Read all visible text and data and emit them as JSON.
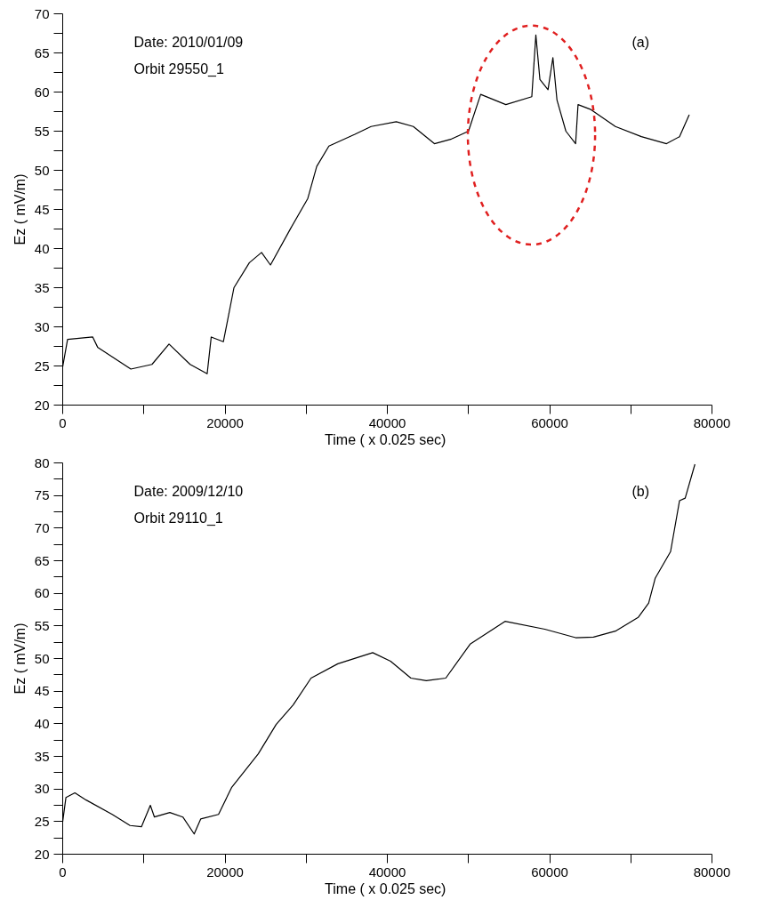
{
  "chart_data": [
    {
      "type": "line",
      "xlabel": "Time  ( x 0.025 sec)",
      "ylabel": "Ez ( mV/m)",
      "annotations": [
        "Date:  2010/01/09",
        "Orbit 29550_1",
        "(a)"
      ],
      "grid": false,
      "x": [
        0,
        600,
        3700,
        4300,
        8400,
        11000,
        13100,
        15700,
        17800,
        18300,
        19800,
        21100,
        23000,
        24500,
        25600,
        28100,
        30200,
        31300,
        32800,
        36000,
        38000,
        41100,
        43200,
        45800,
        47900,
        50000,
        51500,
        54600,
        57800,
        58300,
        58800,
        59800,
        60400,
        60900,
        62000,
        63200,
        63500,
        65000,
        68100,
        71300,
        74400,
        76000,
        77200
      ],
      "series": [
        {
          "color": "#000000",
          "values": [
            24.9,
            28.4,
            28.7,
            27.4,
            24.6,
            25.2,
            27.8,
            25.2,
            24.0,
            28.7,
            28.1,
            35.0,
            38.2,
            39.5,
            37.9,
            42.6,
            46.4,
            50.5,
            53.1,
            54.6,
            55.6,
            56.2,
            55.6,
            53.4,
            54.0,
            55.0,
            59.7,
            58.4,
            59.4,
            67.3,
            61.6,
            60.3,
            64.4,
            59.0,
            55.0,
            53.4,
            58.4,
            57.8,
            55.6,
            54.3,
            53.4,
            54.3,
            57.1
          ]
        }
      ],
      "xlim": [
        0,
        80000
      ],
      "ylim": [
        20,
        70
      ],
      "xticks": [
        0,
        {
          "value": 10000,
          "label": null
        },
        20000,
        {
          "value": 30000,
          "label": null
        },
        40000,
        {
          "value": 50000,
          "label": null
        },
        60000,
        {
          "value": 70000,
          "label": null
        },
        80000
      ],
      "yticks": [
        20,
        {
          "value": 22.5,
          "label": null
        },
        25,
        {
          "value": 27.5,
          "label": null
        },
        30,
        {
          "value": 32.5,
          "label": null
        },
        35,
        {
          "value": 37.5,
          "label": null
        },
        40,
        {
          "value": 42.5,
          "label": null
        },
        45,
        {
          "value": 47.5,
          "label": null
        },
        50,
        {
          "value": 52.5,
          "label": null
        },
        55,
        {
          "value": 57.5,
          "label": null
        },
        60,
        {
          "value": 62.5,
          "label": null
        },
        65,
        {
          "value": 67.5,
          "label": null
        },
        70
      ]
    },
    {
      "type": "line",
      "xlabel": "Time  ( x 0.025 sec)",
      "ylabel": "Ez ( mV/m)",
      "annotations": [
        "Date:  2009/12/10",
        "Orbit 29110_1",
        "(b)"
      ],
      "grid": false,
      "x": [
        0,
        400,
        1500,
        2900,
        6100,
        8300,
        9700,
        10800,
        11300,
        13200,
        14800,
        16200,
        17000,
        19200,
        20800,
        24100,
        26300,
        28400,
        30600,
        33900,
        38200,
        40400,
        42900,
        44800,
        47200,
        50200,
        54500,
        59400,
        63200,
        65400,
        68100,
        70900,
        72200,
        73000,
        74900,
        76000,
        76700,
        77900
      ],
      "series": [
        {
          "color": "#000000",
          "values": [
            25.0,
            28.7,
            29.4,
            28.3,
            26.1,
            24.4,
            24.2,
            27.5,
            25.7,
            26.4,
            25.7,
            23.1,
            25.4,
            26.1,
            30.2,
            35.4,
            39.9,
            42.9,
            47.0,
            49.2,
            50.9,
            49.6,
            47.0,
            46.6,
            47.0,
            52.2,
            55.7,
            54.5,
            53.2,
            53.3,
            54.2,
            56.3,
            58.5,
            62.3,
            66.4,
            74.2,
            74.6,
            79.8
          ]
        }
      ],
      "xlim": [
        0,
        80000
      ],
      "ylim": [
        20,
        80
      ],
      "xticks": [
        0,
        {
          "value": 10000,
          "label": null
        },
        20000,
        {
          "value": 30000,
          "label": null
        },
        40000,
        {
          "value": 50000,
          "label": null
        },
        60000,
        {
          "value": 70000,
          "label": null
        },
        80000
      ],
      "yticks": [
        20,
        {
          "value": 22.5,
          "label": null
        },
        25,
        {
          "value": 27.5,
          "label": null
        },
        30,
        {
          "value": 32.5,
          "label": null
        },
        35,
        {
          "value": 37.5,
          "label": null
        },
        40,
        {
          "value": 42.5,
          "label": null
        },
        45,
        {
          "value": 47.5,
          "label": null
        },
        50,
        {
          "value": 52.5,
          "label": null
        },
        55,
        {
          "value": 57.5,
          "label": null
        },
        60,
        {
          "value": 62.5,
          "label": null
        },
        65,
        {
          "value": 67.5,
          "label": null
        },
        70,
        {
          "value": 72.5,
          "label": null
        },
        75,
        {
          "value": 77.5,
          "label": null
        },
        80
      ]
    }
  ]
}
